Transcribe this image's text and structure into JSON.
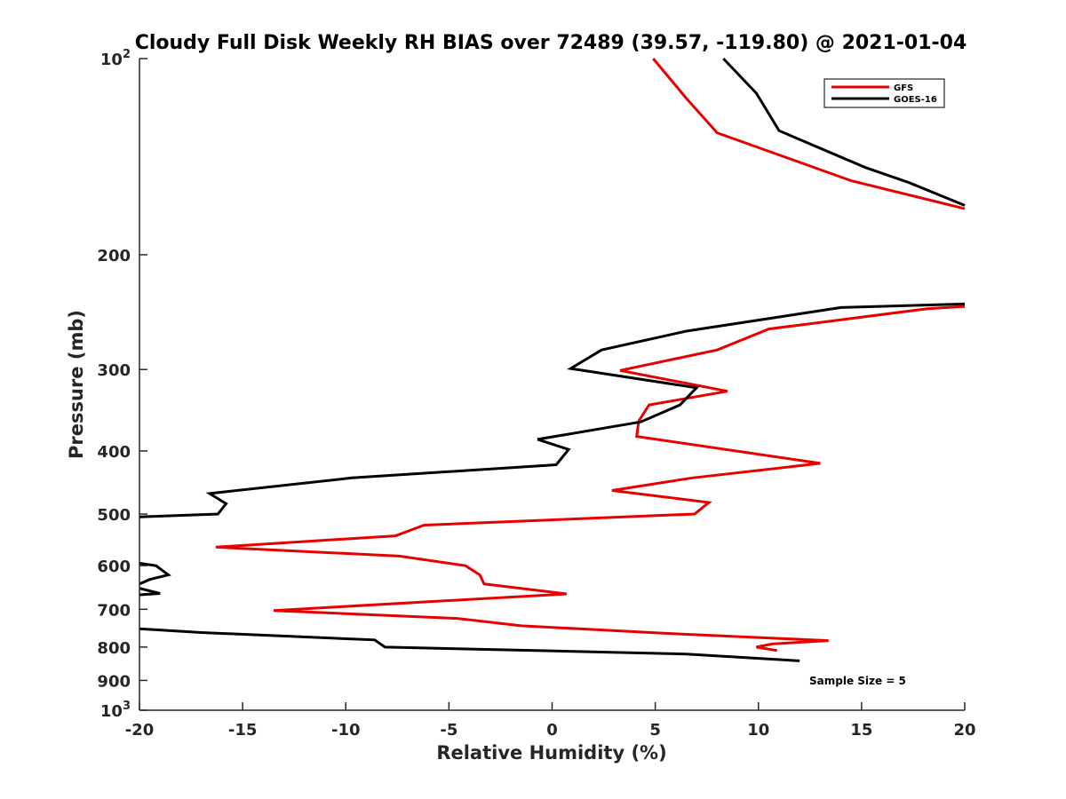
{
  "chart_data": {
    "type": "line",
    "title": "Cloudy Full Disk Weekly RH BIAS over 72489 (39.57, -119.80) @ 2021-01-04",
    "xlabel": "Relative Humidity (%)",
    "ylabel": "Pressure (mb)",
    "xlim": [
      -20,
      20
    ],
    "ylim": [
      100,
      1000
    ],
    "y_scale": "log",
    "y_reversed": true,
    "x_ticks": [
      "-20",
      "-15",
      "-10",
      "-5",
      "0",
      "5",
      "10",
      "15",
      "20"
    ],
    "y_ticks": [
      {
        "value": 100,
        "base": "10",
        "exp": "2"
      },
      {
        "value": 200,
        "label": "200"
      },
      {
        "value": 300,
        "label": "300"
      },
      {
        "value": 400,
        "label": "400"
      },
      {
        "value": 500,
        "label": "500"
      },
      {
        "value": 600,
        "label": "600"
      },
      {
        "value": 700,
        "label": "700"
      },
      {
        "value": 800,
        "label": "800"
      },
      {
        "value": 900,
        "label": "900"
      },
      {
        "value": 1000,
        "base": "10",
        "exp": "3"
      }
    ],
    "legend_position": "top-right",
    "grid": false,
    "annotation": "Sample Size = 5",
    "series": [
      {
        "name": "GFS",
        "color": "#e60000",
        "segments": [
          [
            [
              4.9,
              100
            ],
            [
              6.5,
              115
            ],
            [
              8.0,
              130
            ],
            [
              14.5,
              154
            ],
            [
              20.0,
              170
            ]
          ],
          [
            [
              20.0,
              240
            ],
            [
              18.2,
              242
            ],
            [
              10.5,
              260
            ],
            [
              8.0,
              280
            ],
            [
              3.3,
              301
            ],
            [
              8.5,
              324
            ],
            [
              4.7,
              340
            ],
            [
              4.2,
              360
            ],
            [
              4.1,
              380
            ],
            [
              13.0,
              418
            ],
            [
              6.8,
              440
            ],
            [
              2.9,
              460
            ],
            [
              7.6,
              480
            ],
            [
              6.9,
              500
            ],
            [
              -6.2,
              520
            ],
            [
              -7.6,
              540
            ],
            [
              -16.3,
              562
            ],
            [
              -7.4,
              580
            ],
            [
              -4.2,
              600
            ],
            [
              -3.5,
              620
            ],
            [
              -3.3,
              640
            ],
            [
              0.7,
              663
            ],
            [
              -13.5,
              703
            ],
            [
              -4.6,
              723
            ],
            [
              -1.5,
              742
            ],
            [
              5.5,
              762
            ],
            [
              13.4,
              782
            ],
            [
              10.7,
              791
            ],
            [
              9.9,
              800
            ],
            [
              10.9,
              810
            ]
          ]
        ]
      },
      {
        "name": "GOES-16",
        "color": "#000000",
        "segments": [
          [
            [
              8.3,
              100
            ],
            [
              9.9,
              113
            ],
            [
              11.0,
              129
            ],
            [
              15.2,
              147
            ],
            [
              17.3,
              155
            ],
            [
              20.0,
              168
            ]
          ],
          [
            [
              20.0,
              238
            ],
            [
              14.0,
              241
            ],
            [
              6.5,
              262
            ],
            [
              2.4,
              280
            ],
            [
              0.9,
              299
            ],
            [
              7.0,
              320
            ],
            [
              6.2,
              340
            ],
            [
              4.3,
              361
            ],
            [
              -0.7,
              384
            ],
            [
              0.8,
              398
            ],
            [
              0.2,
              420
            ],
            [
              -9.7,
              440
            ],
            [
              -16.6,
              465
            ],
            [
              -15.8,
              482
            ],
            [
              -16.2,
              500
            ],
            [
              -20.0,
              505
            ]
          ],
          [
            [
              -20.0,
              595
            ],
            [
              -19.2,
              600
            ],
            [
              -18.6,
              620
            ],
            [
              -19.5,
              630
            ],
            [
              -20.0,
              640
            ]
          ],
          [
            [
              -20.0,
              650
            ],
            [
              -19.0,
              662
            ],
            [
              -20.0,
              665
            ]
          ],
          [
            [
              -20.0,
              750
            ],
            [
              -17.0,
              760
            ],
            [
              -8.6,
              780
            ],
            [
              -8.1,
              800
            ],
            [
              6.5,
              820
            ],
            [
              12.0,
              840
            ]
          ]
        ]
      }
    ]
  }
}
